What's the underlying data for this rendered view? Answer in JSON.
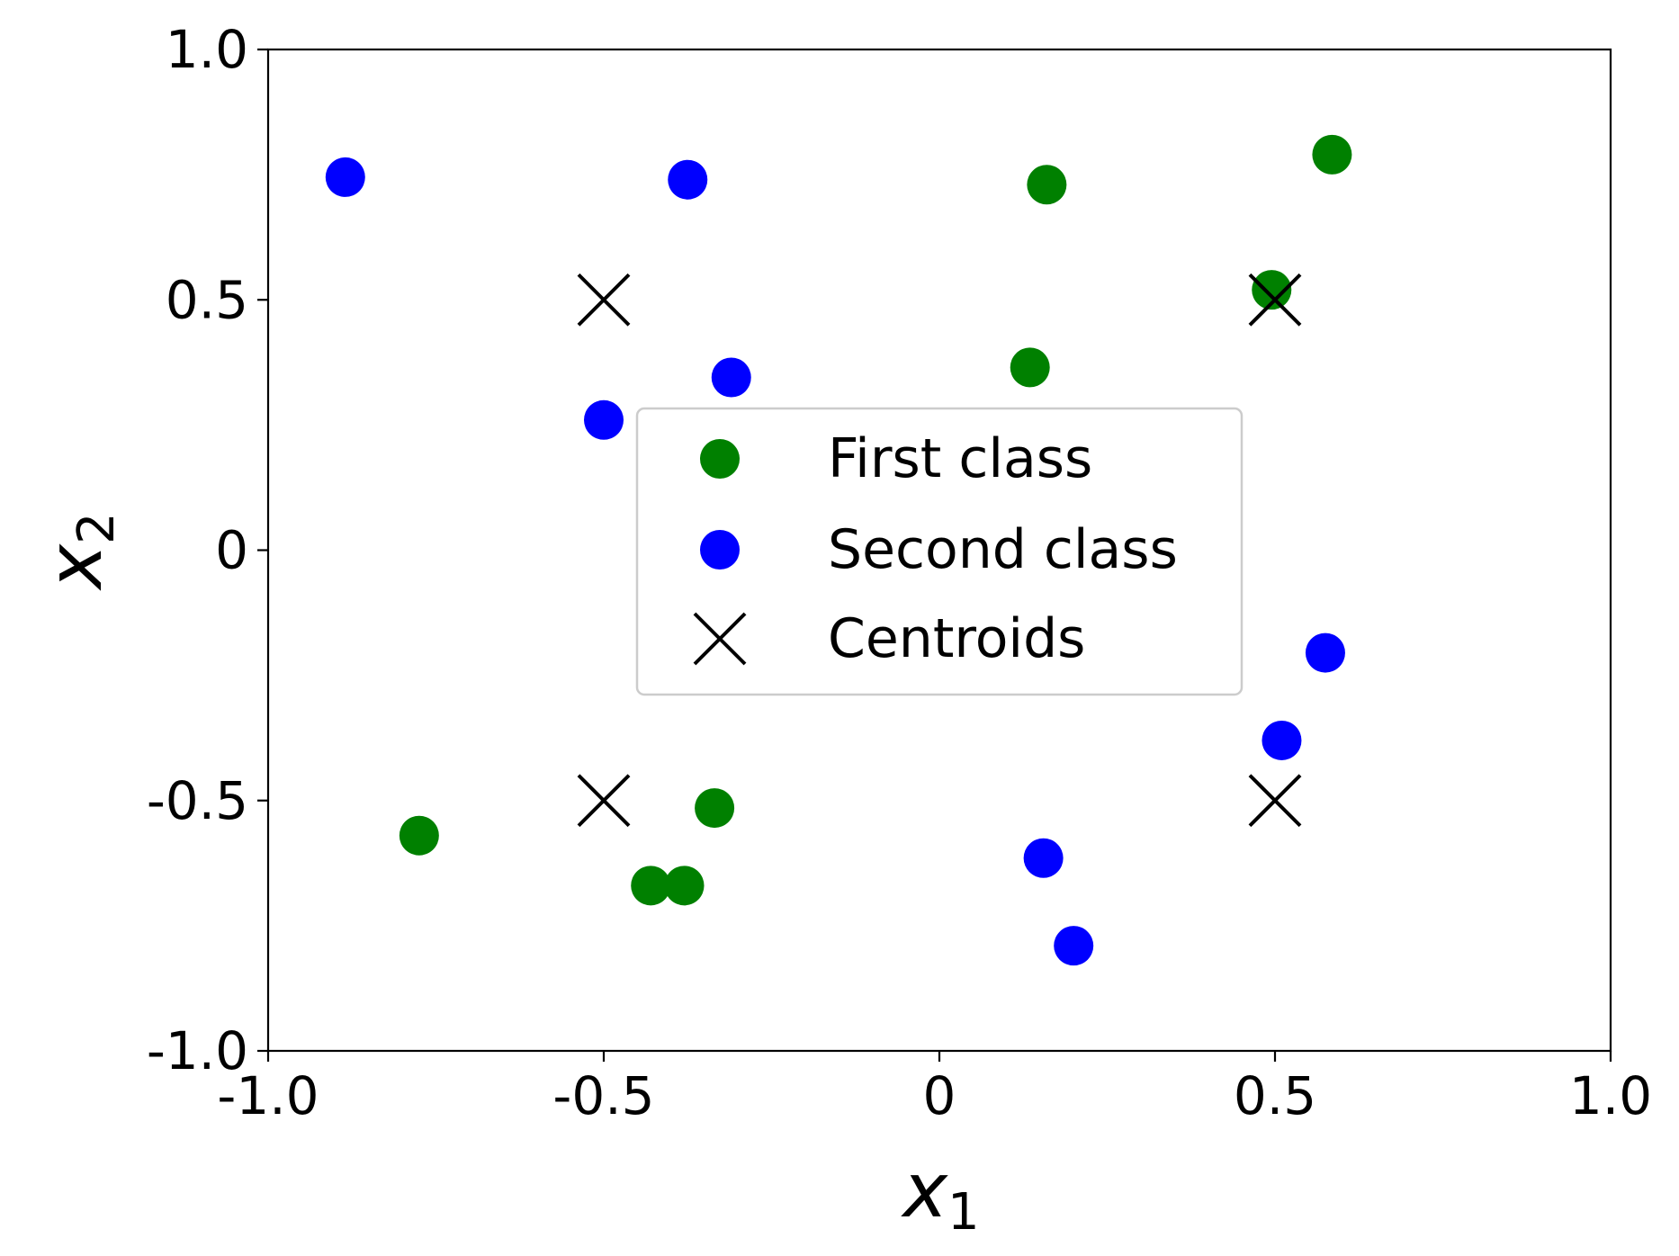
{
  "chart_data": {
    "type": "scatter",
    "title": "",
    "xlabel": "x",
    "xlabel_sub": "1",
    "ylabel": "x",
    "ylabel_sub": "2",
    "xlim": [
      -1.0,
      1.0
    ],
    "ylim": [
      -1.0,
      1.0
    ],
    "xticks": [
      -1.0,
      -0.5,
      0,
      0.5,
      1.0
    ],
    "xtick_labels": [
      "-1.0",
      "-0.5",
      "0",
      "0.5",
      "1.0"
    ],
    "yticks": [
      -1.0,
      -0.5,
      0,
      0.5,
      1.0
    ],
    "ytick_labels": [
      "-1.0",
      "-0.5",
      "0",
      "0.5",
      "1.0"
    ],
    "grid": false,
    "legend_position": "center",
    "series": [
      {
        "name": "First class",
        "marker": "circle",
        "color": "#008000",
        "points": [
          {
            "x": 0.16,
            "y": 0.73
          },
          {
            "x": 0.585,
            "y": 0.79
          },
          {
            "x": 0.495,
            "y": 0.52
          },
          {
            "x": 0.135,
            "y": 0.365
          },
          {
            "x": -0.775,
            "y": -0.57
          },
          {
            "x": -0.43,
            "y": -0.67
          },
          {
            "x": -0.38,
            "y": -0.67
          },
          {
            "x": -0.335,
            "y": -0.515
          }
        ]
      },
      {
        "name": "Second class",
        "marker": "circle",
        "color": "#0000ff",
        "points": [
          {
            "x": -0.885,
            "y": 0.745
          },
          {
            "x": -0.375,
            "y": 0.74
          },
          {
            "x": -0.31,
            "y": 0.345
          },
          {
            "x": -0.5,
            "y": 0.26
          },
          {
            "x": 0.575,
            "y": -0.205
          },
          {
            "x": 0.51,
            "y": -0.38
          },
          {
            "x": 0.155,
            "y": -0.615
          },
          {
            "x": 0.2,
            "y": -0.79
          }
        ]
      },
      {
        "name": "Centroids",
        "marker": "x",
        "color": "#000000",
        "points": [
          {
            "x": -0.5,
            "y": 0.5
          },
          {
            "x": 0.5,
            "y": 0.5
          },
          {
            "x": -0.5,
            "y": -0.5
          },
          {
            "x": 0.5,
            "y": -0.5
          }
        ]
      }
    ]
  }
}
